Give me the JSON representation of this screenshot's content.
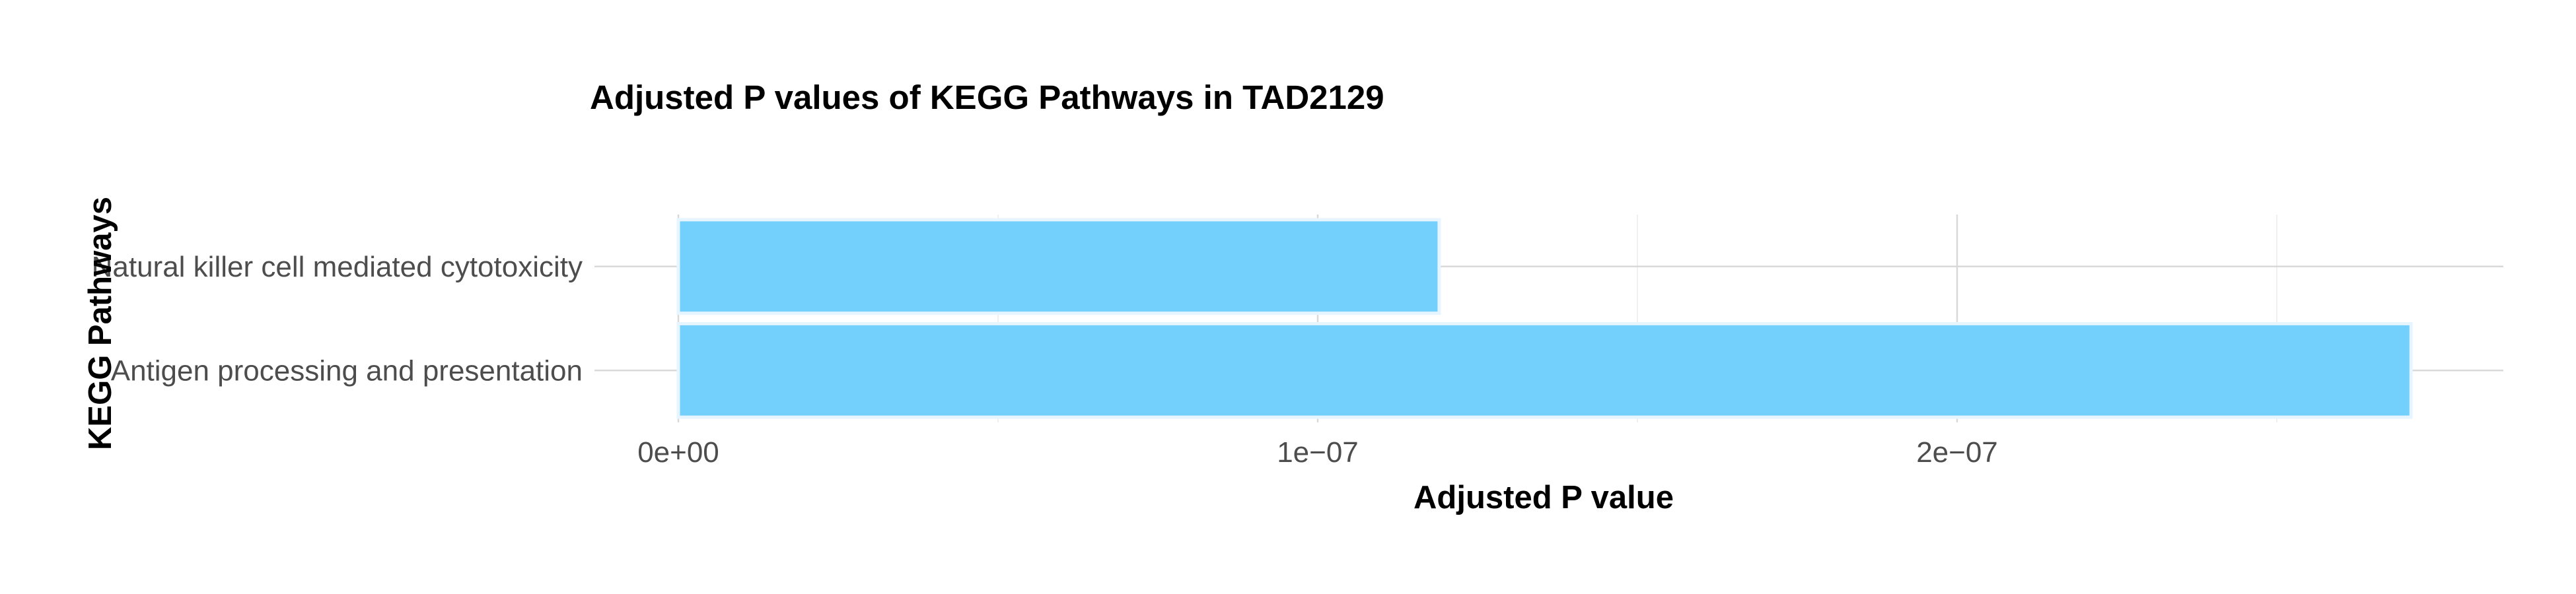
{
  "chart_data": {
    "type": "bar",
    "orientation": "horizontal",
    "title": "Adjusted P values of KEGG Pathways in TAD2129",
    "xlabel": "Adjusted P value",
    "ylabel": "KEGG Pathways",
    "categories": [
      "Natural killer cell mediated cytotoxicity",
      "Antigen processing and presentation"
    ],
    "values": [
      1.19e-07,
      2.71e-07
    ],
    "xlim": [
      0,
      2.85e-07
    ],
    "xticks": [
      0,
      1e-07,
      2e-07
    ],
    "xtick_labels": [
      "0e+00",
      "1e−07",
      "2e−07"
    ],
    "bar_color": "#73CFFB",
    "grid": true,
    "legend": "none"
  }
}
